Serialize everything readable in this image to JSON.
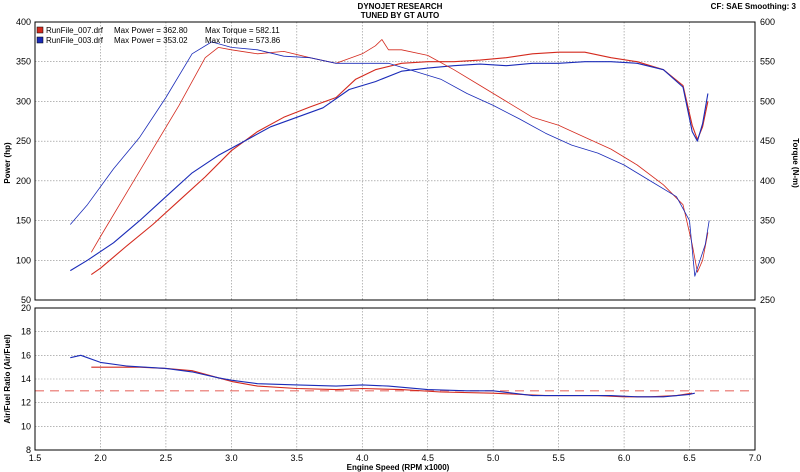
{
  "header": {
    "title": "DYNOJET RESEARCH",
    "subtitle": "TUNED BY GT AUTO",
    "settings": "CF: SAE  Smoothing: 3"
  },
  "legend": [
    {
      "file": "RunFile_007.drf",
      "power_label": "Max Power = 362.80",
      "torque_label": "Max Torque = 582.11",
      "color": "#d42a1e"
    },
    {
      "file": "RunFile_003.drf",
      "power_label": "Max Power = 353.02",
      "torque_label": "Max Torque = 573.86",
      "color": "#1a2bb8"
    }
  ],
  "chart_data": [
    {
      "type": "line",
      "title": "DYNOJET RESEARCH",
      "subtitle": "TUNED BY GT AUTO",
      "xlabel": "",
      "ylabel": "Power (hp)",
      "y2label": "Torque (N-m)",
      "xlim": [
        1.5,
        7.0
      ],
      "ylim": [
        50,
        400
      ],
      "y2lim": [
        250,
        600
      ],
      "xticks": [
        1.5,
        2.0,
        2.5,
        3.0,
        3.5,
        4.0,
        4.5,
        5.0,
        5.5,
        6.0,
        6.5,
        7.0
      ],
      "yticks": [
        50,
        100,
        150,
        200,
        250,
        300,
        350,
        400
      ],
      "y2ticks": [
        250,
        300,
        350,
        400,
        450,
        500,
        550,
        600
      ],
      "grid": true,
      "legend_position": "top-left",
      "series": [
        {
          "name": "RunFile_007.drf",
          "measure": "power",
          "axis": "left",
          "color": "#d42a1e",
          "x": [
            1.93,
            2.0,
            2.2,
            2.4,
            2.6,
            2.8,
            3.0,
            3.2,
            3.4,
            3.6,
            3.8,
            3.95,
            4.1,
            4.3,
            4.5,
            4.7,
            4.9,
            5.1,
            5.3,
            5.5,
            5.7,
            5.9,
            6.1,
            6.3,
            6.45,
            6.52,
            6.56,
            6.6,
            6.64
          ],
          "values": [
            82,
            90,
            118,
            145,
            175,
            205,
            238,
            262,
            280,
            293,
            305,
            328,
            340,
            348,
            350,
            350,
            352,
            355,
            360,
            362,
            362,
            355,
            350,
            340,
            320,
            270,
            252,
            268,
            300
          ]
        },
        {
          "name": "RunFile_003.drf",
          "measure": "power",
          "axis": "left",
          "color": "#1a2bb8",
          "x": [
            1.77,
            1.9,
            2.1,
            2.3,
            2.5,
            2.7,
            2.9,
            3.1,
            3.3,
            3.5,
            3.7,
            3.9,
            4.1,
            4.3,
            4.5,
            4.7,
            4.9,
            5.1,
            5.3,
            5.5,
            5.7,
            5.9,
            6.1,
            6.3,
            6.45,
            6.52,
            6.56,
            6.6,
            6.64
          ],
          "values": [
            87,
            100,
            122,
            150,
            180,
            210,
            232,
            250,
            268,
            280,
            292,
            315,
            325,
            338,
            342,
            345,
            347,
            345,
            348,
            348,
            350,
            350,
            348,
            340,
            318,
            262,
            250,
            272,
            310
          ]
        },
        {
          "name": "RunFile_007.drf",
          "measure": "torque",
          "axis": "right",
          "color": "#d42a1e",
          "x": [
            1.93,
            2.0,
            2.2,
            2.4,
            2.6,
            2.8,
            2.9,
            3.0,
            3.2,
            3.4,
            3.6,
            3.8,
            4.0,
            4.1,
            4.15,
            4.2,
            4.3,
            4.5,
            4.7,
            4.9,
            5.1,
            5.3,
            5.5,
            5.7,
            5.9,
            6.1,
            6.3,
            6.45,
            6.52,
            6.56,
            6.6,
            6.64
          ],
          "values": [
            310,
            330,
            385,
            440,
            495,
            555,
            568,
            565,
            560,
            563,
            555,
            548,
            560,
            570,
            578,
            565,
            565,
            558,
            540,
            520,
            500,
            480,
            470,
            455,
            440,
            420,
            395,
            370,
            320,
            285,
            300,
            335
          ]
        },
        {
          "name": "RunFile_003.drf",
          "measure": "torque",
          "axis": "right",
          "color": "#1a2bb8",
          "x": [
            1.77,
            1.9,
            2.1,
            2.3,
            2.5,
            2.7,
            2.85,
            3.0,
            3.2,
            3.4,
            3.6,
            3.8,
            4.0,
            4.2,
            4.4,
            4.6,
            4.8,
            5.0,
            5.2,
            5.4,
            5.6,
            5.8,
            6.0,
            6.2,
            6.4,
            6.5,
            6.54,
            6.58,
            6.62,
            6.65
          ],
          "values": [
            345,
            370,
            415,
            455,
            505,
            560,
            575,
            568,
            565,
            557,
            555,
            548,
            548,
            548,
            538,
            528,
            510,
            495,
            478,
            460,
            445,
            435,
            420,
            400,
            380,
            350,
            280,
            300,
            320,
            350
          ]
        }
      ]
    },
    {
      "type": "line",
      "xlabel": "Engine Speed (RPM x1000)",
      "ylabel": "Air/Fuel Ratio (Air/Fuel)",
      "xlim": [
        1.5,
        7.0
      ],
      "ylim": [
        8,
        20
      ],
      "xticks": [
        1.5,
        2.0,
        2.5,
        3.0,
        3.5,
        4.0,
        4.5,
        5.0,
        5.5,
        6.0,
        6.5,
        7.0
      ],
      "yticks": [
        8,
        10,
        12,
        14,
        16,
        18,
        20
      ],
      "grid": true,
      "reference_line": 13.0,
      "series": [
        {
          "name": "RunFile_007.drf",
          "color": "#d42a1e",
          "x": [
            1.93,
            2.1,
            2.3,
            2.5,
            2.7,
            2.9,
            3.0,
            3.2,
            3.5,
            3.8,
            4.0,
            4.3,
            4.6,
            5.0,
            5.4,
            5.8,
            6.0,
            6.2,
            6.4,
            6.52
          ],
          "values": [
            15.0,
            15.0,
            15.0,
            14.9,
            14.7,
            14.1,
            13.8,
            13.4,
            13.2,
            13.1,
            13.2,
            13.1,
            12.9,
            12.8,
            12.6,
            12.6,
            12.5,
            12.5,
            12.6,
            12.8
          ]
        },
        {
          "name": "RunFile_003.drf",
          "color": "#1a2bb8",
          "x": [
            1.77,
            1.85,
            2.0,
            2.2,
            2.5,
            2.7,
            2.9,
            3.0,
            3.2,
            3.5,
            3.8,
            4.0,
            4.2,
            4.5,
            4.8,
            5.0,
            5.3,
            5.6,
            5.9,
            6.1,
            6.3,
            6.5,
            6.54
          ],
          "values": [
            15.8,
            16.0,
            15.4,
            15.1,
            14.9,
            14.6,
            14.1,
            13.9,
            13.6,
            13.5,
            13.4,
            13.5,
            13.4,
            13.1,
            13.0,
            13.0,
            12.6,
            12.6,
            12.6,
            12.5,
            12.5,
            12.7,
            12.8
          ]
        }
      ]
    }
  ]
}
